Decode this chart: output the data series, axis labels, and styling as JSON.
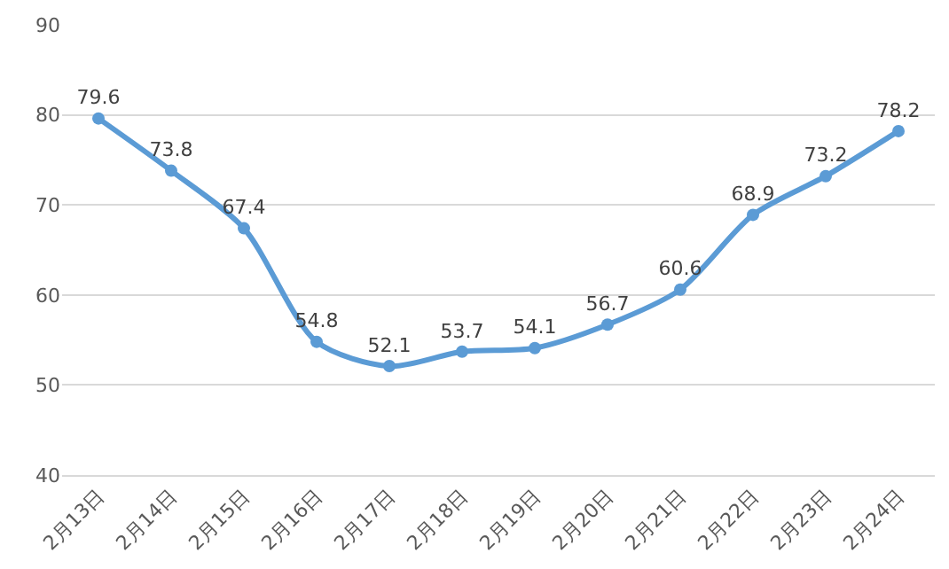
{
  "chart_data": {
    "type": "line",
    "categories": [
      "2月13日",
      "2月14日",
      "2月15日",
      "2月16日",
      "2月17日",
      "2月18日",
      "2月19日",
      "2月20日",
      "2月21日",
      "2月22日",
      "2月23日",
      "2月24日"
    ],
    "values": [
      79.6,
      73.8,
      67.4,
      54.8,
      52.1,
      53.7,
      54.1,
      56.7,
      60.6,
      68.9,
      73.2,
      78.2
    ],
    "color": "#5b9bd5",
    "ylim": [
      40,
      90
    ],
    "yticks": [
      40,
      50,
      60,
      70,
      80,
      90
    ],
    "grid": "y",
    "marker": "circle",
    "data_labels": true,
    "legend": false
  }
}
